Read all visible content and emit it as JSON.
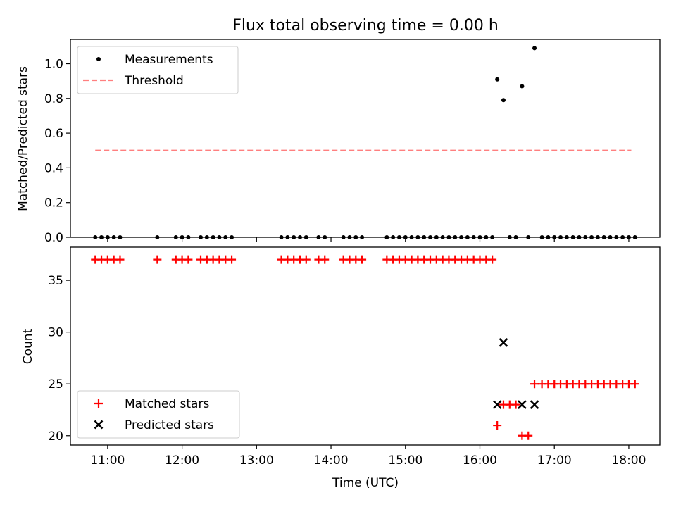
{
  "chart_data": [
    {
      "type": "scatter",
      "title": "Flux total observing time = 0.00 h",
      "xlabel": "",
      "ylabel": "Matched/Predicted stars",
      "xlim": [
        "10:30",
        "18:25"
      ],
      "ylim": [
        0,
        1.14
      ],
      "yticks": [
        "0.0",
        "0.2",
        "0.4",
        "0.6",
        "0.8",
        "1.0"
      ],
      "legend_position": "upper-left",
      "series": [
        {
          "name": "Measurements",
          "marker": "dot",
          "color": "#000000",
          "points": [
            [
              "10:50",
              0
            ],
            [
              "10:55",
              0
            ],
            [
              "11:00",
              0
            ],
            [
              "11:05",
              0
            ],
            [
              "11:10",
              0
            ],
            [
              "11:40",
              0
            ],
            [
              "11:55",
              0
            ],
            [
              "12:00",
              0
            ],
            [
              "12:05",
              0
            ],
            [
              "12:15",
              0
            ],
            [
              "12:20",
              0
            ],
            [
              "12:25",
              0
            ],
            [
              "12:30",
              0
            ],
            [
              "12:35",
              0
            ],
            [
              "12:40",
              0
            ],
            [
              "13:20",
              0
            ],
            [
              "13:25",
              0
            ],
            [
              "13:30",
              0
            ],
            [
              "13:35",
              0
            ],
            [
              "13:40",
              0
            ],
            [
              "13:50",
              0
            ],
            [
              "13:55",
              0
            ],
            [
              "14:10",
              0
            ],
            [
              "14:15",
              0
            ],
            [
              "14:20",
              0
            ],
            [
              "14:25",
              0
            ],
            [
              "14:45",
              0
            ],
            [
              "14:50",
              0
            ],
            [
              "14:55",
              0
            ],
            [
              "15:00",
              0
            ],
            [
              "15:05",
              0
            ],
            [
              "15:10",
              0
            ],
            [
              "15:15",
              0
            ],
            [
              "15:20",
              0
            ],
            [
              "15:25",
              0
            ],
            [
              "15:30",
              0
            ],
            [
              "15:35",
              0
            ],
            [
              "15:40",
              0
            ],
            [
              "15:45",
              0
            ],
            [
              "15:50",
              0
            ],
            [
              "15:55",
              0
            ],
            [
              "16:00",
              0
            ],
            [
              "16:05",
              0
            ],
            [
              "16:10",
              0
            ],
            [
              "16:14",
              0.91
            ],
            [
              "16:19",
              0.79
            ],
            [
              "16:34",
              0.87
            ],
            [
              "16:44",
              1.09
            ],
            [
              "16:24",
              0
            ],
            [
              "16:29",
              0
            ],
            [
              "16:39",
              0
            ],
            [
              "16:50",
              0
            ],
            [
              "16:55",
              0
            ],
            [
              "17:00",
              0
            ],
            [
              "17:05",
              0
            ],
            [
              "17:10",
              0
            ],
            [
              "17:15",
              0
            ],
            [
              "17:20",
              0
            ],
            [
              "17:25",
              0
            ],
            [
              "17:30",
              0
            ],
            [
              "17:35",
              0
            ],
            [
              "17:40",
              0
            ],
            [
              "17:45",
              0
            ],
            [
              "17:50",
              0
            ],
            [
              "17:55",
              0
            ],
            [
              "18:00",
              0
            ],
            [
              "18:05",
              0
            ]
          ]
        },
        {
          "name": "Threshold",
          "marker": "dashed-line",
          "color": "#ff7f7f",
          "points": [
            [
              "10:50",
              0.5
            ],
            [
              "18:02",
              0.5
            ]
          ]
        }
      ]
    },
    {
      "type": "scatter",
      "title": "",
      "xlabel": "Time (UTC)",
      "ylabel": "Count",
      "xlim": [
        "10:30",
        "18:25"
      ],
      "ylim": [
        19.1,
        38.2
      ],
      "yticks": [
        "20",
        "25",
        "30",
        "35"
      ],
      "xticks": [
        "11:00",
        "12:00",
        "13:00",
        "14:00",
        "15:00",
        "16:00",
        "17:00",
        "18:00"
      ],
      "legend_position": "lower-left",
      "series": [
        {
          "name": "Matched stars",
          "marker": "plus",
          "color": "#ff0000",
          "points": [
            [
              "10:50",
              37
            ],
            [
              "10:55",
              37
            ],
            [
              "11:00",
              37
            ],
            [
              "11:05",
              37
            ],
            [
              "11:10",
              37
            ],
            [
              "11:40",
              37
            ],
            [
              "11:55",
              37
            ],
            [
              "12:00",
              37
            ],
            [
              "12:05",
              37
            ],
            [
              "12:15",
              37
            ],
            [
              "12:20",
              37
            ],
            [
              "12:25",
              37
            ],
            [
              "12:30",
              37
            ],
            [
              "12:35",
              37
            ],
            [
              "12:40",
              37
            ],
            [
              "13:20",
              37
            ],
            [
              "13:25",
              37
            ],
            [
              "13:30",
              37
            ],
            [
              "13:35",
              37
            ],
            [
              "13:40",
              37
            ],
            [
              "13:50",
              37
            ],
            [
              "13:55",
              37
            ],
            [
              "14:10",
              37
            ],
            [
              "14:15",
              37
            ],
            [
              "14:20",
              37
            ],
            [
              "14:25",
              37
            ],
            [
              "14:45",
              37
            ],
            [
              "14:50",
              37
            ],
            [
              "14:55",
              37
            ],
            [
              "15:00",
              37
            ],
            [
              "15:05",
              37
            ],
            [
              "15:10",
              37
            ],
            [
              "15:15",
              37
            ],
            [
              "15:20",
              37
            ],
            [
              "15:25",
              37
            ],
            [
              "15:30",
              37
            ],
            [
              "15:35",
              37
            ],
            [
              "15:40",
              37
            ],
            [
              "15:45",
              37
            ],
            [
              "15:50",
              37
            ],
            [
              "15:55",
              37
            ],
            [
              "16:00",
              37
            ],
            [
              "16:05",
              37
            ],
            [
              "16:10",
              37
            ],
            [
              "16:14",
              21
            ],
            [
              "16:19",
              23
            ],
            [
              "16:24",
              23
            ],
            [
              "16:29",
              23
            ],
            [
              "16:34",
              20
            ],
            [
              "16:39",
              20
            ],
            [
              "16:44",
              25
            ],
            [
              "16:50",
              25
            ],
            [
              "16:55",
              25
            ],
            [
              "17:00",
              25
            ],
            [
              "17:05",
              25
            ],
            [
              "17:10",
              25
            ],
            [
              "17:15",
              25
            ],
            [
              "17:20",
              25
            ],
            [
              "17:25",
              25
            ],
            [
              "17:30",
              25
            ],
            [
              "17:35",
              25
            ],
            [
              "17:40",
              25
            ],
            [
              "17:45",
              25
            ],
            [
              "17:50",
              25
            ],
            [
              "17:55",
              25
            ],
            [
              "18:00",
              25
            ],
            [
              "18:05",
              25
            ]
          ]
        },
        {
          "name": "Predicted stars",
          "marker": "x",
          "color": "#000000",
          "points": [
            [
              "16:14",
              23
            ],
            [
              "16:19",
              29
            ],
            [
              "16:34",
              23
            ],
            [
              "16:44",
              23
            ]
          ]
        }
      ]
    }
  ]
}
